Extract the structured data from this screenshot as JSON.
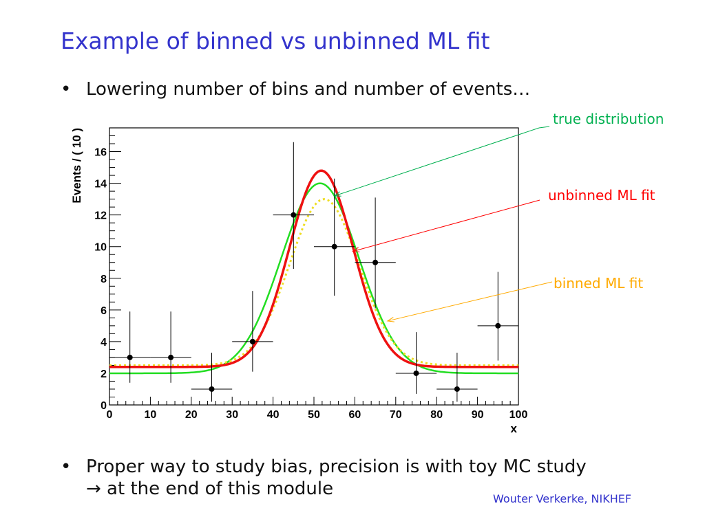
{
  "slide": {
    "title": "Example of binned vs unbinned ML fit",
    "bullets": [
      {
        "text": "Lowering number of bins and number of events…"
      },
      {
        "text": "Proper way to study bias, precision is with toy MC study",
        "subtext": "→ at the end of this module"
      }
    ],
    "bullet_glyph": "•",
    "author": "Wouter Verkerke, NIKHEF"
  },
  "colors": {
    "title": "#3333cc",
    "true_distribution": "#22dd22",
    "unbinned_fit": "#ee1111",
    "binned_fit": "#eedd22",
    "true_label": "#00b050",
    "unbinned_label": "#ff0000",
    "binned_label": "#ffaa00",
    "author": "#3333cc"
  },
  "chart_data": {
    "type": "scatter",
    "xlabel": "x",
    "ylabel": "Events / ( 10 )",
    "xlim": [
      0,
      100
    ],
    "ylim": [
      0,
      17.5
    ],
    "xticks": [
      0,
      10,
      20,
      30,
      40,
      50,
      60,
      70,
      80,
      90,
      100
    ],
    "yticks": [
      0,
      2,
      4,
      6,
      8,
      10,
      12,
      14,
      16
    ],
    "grid": false,
    "points": {
      "x": [
        5,
        15,
        25,
        35,
        45,
        55,
        65,
        75,
        85,
        95
      ],
      "y": [
        3,
        3,
        1,
        4,
        12,
        10,
        9,
        2,
        1,
        5
      ],
      "xerr": 5,
      "yerr_low": [
        1.6,
        1.6,
        0.8,
        1.9,
        3.4,
        3.1,
        2.9,
        1.3,
        0.8,
        2.2
      ],
      "yerr_high": [
        2.9,
        2.9,
        2.3,
        3.2,
        4.6,
        4.3,
        4.1,
        2.6,
        2.3,
        3.4
      ]
    },
    "series": [
      {
        "name": "true distribution",
        "type": "line",
        "color": "#22dd22",
        "baseline": 2.0,
        "amplitude": 12.0,
        "mean": 51.5,
        "sigma": 9.5
      },
      {
        "name": "unbinned ML fit",
        "type": "line",
        "color": "#ee1111",
        "baseline": 2.4,
        "amplitude": 12.4,
        "mean": 51.8,
        "sigma": 7.8
      },
      {
        "name": "binned ML fit",
        "type": "line",
        "color": "#eedd22",
        "dashed": true,
        "baseline": 2.5,
        "amplitude": 10.5,
        "mean": 52.5,
        "sigma": 8.5
      }
    ],
    "annotations": [
      {
        "text": "true distribution",
        "color": "#00b050",
        "target": "true distribution",
        "target_x": 55,
        "target_y": 13.2
      },
      {
        "text": "unbinned ML fit",
        "color": "#ff0000",
        "target": "unbinned ML fit",
        "target_x": 59.5,
        "target_y": 9.7
      },
      {
        "text": "binned ML fit",
        "color": "#ffaa00",
        "target": "binned ML fit",
        "target_x": 68,
        "target_y": 5.3
      }
    ]
  }
}
